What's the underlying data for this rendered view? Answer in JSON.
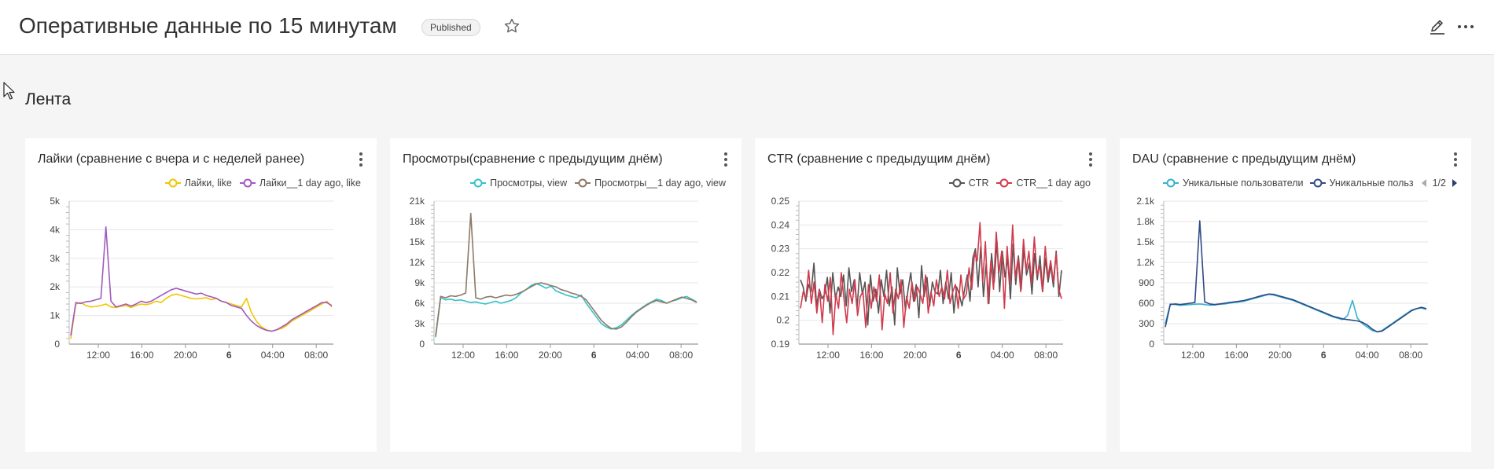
{
  "header": {
    "title": "Оперативные данные по 15 минутам",
    "badge": "Published"
  },
  "section": {
    "title": "Лента"
  },
  "icons": {
    "star": "star-icon",
    "edit": "edit-icon",
    "more": "more-icon",
    "kebab": "kebab-icon"
  },
  "cards": [
    {
      "title": "Лайки (сравнение с вчера и с неделей ранее)",
      "legend": [
        "Лайки, like",
        "Лайки__1 day ago, like"
      ]
    },
    {
      "title": "Просмотры(сравнение с предыдущим днём)",
      "legend": [
        "Просмотры, view",
        "Просмотры__1 day ago, view"
      ]
    },
    {
      "title": "CTR (сравнение с предыдущим днём)",
      "legend": [
        "CTR",
        "CTR__1 day ago"
      ]
    },
    {
      "title": "DAU (сравнение с предыдущим днём)",
      "legend": [
        "Уникальные пользователи",
        "Уникальные польз"
      ],
      "pager": "1/2"
    }
  ],
  "chart_data": [
    {
      "type": "line",
      "x_ticks": [
        "12:00",
        "16:00",
        "20:00",
        "6",
        "04:00",
        "08:00"
      ],
      "y_ticks": [
        "0",
        "1k",
        "2k",
        "3k",
        "4k",
        "5k"
      ],
      "ylim": [
        0,
        5000
      ],
      "series": [
        {
          "name": "Лайки, like",
          "color": "#f2c500",
          "values": [
            180,
            1400,
            1450,
            1350,
            1300,
            1320,
            1350,
            1400,
            1300,
            1280,
            1320,
            1350,
            1280,
            1350,
            1400,
            1380,
            1420,
            1500,
            1450,
            1600,
            1700,
            1750,
            1700,
            1650,
            1600,
            1580,
            1600,
            1620,
            1550,
            1600,
            1500,
            1450,
            1400,
            1350,
            1300,
            1600,
            1100,
            800,
            600,
            500,
            450,
            500,
            550,
            650,
            800,
            900,
            1000,
            1100,
            1200,
            1300,
            1400,
            1500,
            1300
          ]
        },
        {
          "name": "Лайки__1 day ago, like",
          "color": "#a05bc0",
          "values": [
            300,
            1450,
            1420,
            1480,
            1500,
            1550,
            1600,
            4100,
            1500,
            1300,
            1350,
            1400,
            1330,
            1400,
            1500,
            1450,
            1500,
            1600,
            1700,
            1800,
            1900,
            1950,
            1900,
            1850,
            1800,
            1750,
            1780,
            1700,
            1650,
            1600,
            1500,
            1450,
            1350,
            1300,
            1250,
            1000,
            800,
            650,
            550,
            480,
            450,
            500,
            600,
            700,
            850,
            950,
            1050,
            1150,
            1250,
            1350,
            1450,
            1450,
            1350
          ]
        }
      ]
    },
    {
      "type": "line",
      "x_ticks": [
        "12:00",
        "16:00",
        "20:00",
        "6",
        "04:00",
        "08:00"
      ],
      "y_ticks": [
        "0",
        "3k",
        "6k",
        "9k",
        "12k",
        "15k",
        "18k",
        "21k"
      ],
      "ylim": [
        0,
        21000
      ],
      "series": [
        {
          "name": "Просмотры, view",
          "color": "#34c1c9",
          "values": [
            1000,
            6800,
            6500,
            6600,
            6400,
            6500,
            6300,
            6100,
            6200,
            6000,
            5900,
            6100,
            6300,
            6000,
            6200,
            6400,
            6800,
            7500,
            8000,
            8600,
            8900,
            8600,
            8200,
            8500,
            7800,
            7500,
            7200,
            7000,
            6800,
            7200,
            6000,
            5000,
            4000,
            3000,
            2500,
            2200,
            2400,
            2800,
            3500,
            4200,
            4800,
            5300,
            5800,
            6200,
            6600,
            6400,
            6000,
            6300,
            6500,
            6800,
            7000,
            6600,
            6200
          ]
        },
        {
          "name": "Просмотры__1 day ago, view",
          "color": "#8c7967",
          "values": [
            1200,
            7000,
            6800,
            7100,
            7000,
            7200,
            7500,
            19200,
            6800,
            6600,
            6900,
            7000,
            6800,
            7000,
            7200,
            7100,
            7300,
            7600,
            8000,
            8400,
            8800,
            9000,
            8800,
            8600,
            8400,
            8000,
            7800,
            7500,
            7300,
            7000,
            6500,
            5500,
            4500,
            3500,
            2800,
            2300,
            2200,
            2500,
            3200,
            4000,
            4700,
            5200,
            5700,
            6100,
            6400,
            6200,
            6000,
            6300,
            6600,
            6900,
            6700,
            6500,
            6100
          ]
        }
      ]
    },
    {
      "type": "line",
      "x_ticks": [
        "12:00",
        "16:00",
        "20:00",
        "6",
        "04:00",
        "08:00"
      ],
      "y_ticks": [
        "0.19",
        "0.2",
        "0.21",
        "0.22",
        "0.23",
        "0.24",
        "0.25"
      ],
      "ylim": [
        0.19,
        0.25
      ],
      "series": [
        {
          "name": "CTR",
          "color": "#555555",
          "values": [
            0.217,
            0.214,
            0.208,
            0.215,
            0.212,
            0.224,
            0.206,
            0.213,
            0.209,
            0.211,
            0.218,
            0.203,
            0.22,
            0.209,
            0.214,
            0.21,
            0.219,
            0.206,
            0.222,
            0.212,
            0.217,
            0.205,
            0.22,
            0.211,
            0.216,
            0.198,
            0.219,
            0.208,
            0.213,
            0.203,
            0.217,
            0.21,
            0.221,
            0.206,
            0.214,
            0.198,
            0.222,
            0.211,
            0.217,
            0.204,
            0.213,
            0.22,
            0.208,
            0.215,
            0.201,
            0.223,
            0.21,
            0.218,
            0.206,
            0.216,
            0.212,
            0.211,
            0.221,
            0.207,
            0.216,
            0.209,
            0.22,
            0.203,
            0.214,
            0.211,
            0.206,
            0.213,
            0.219,
            0.208,
            0.226,
            0.23,
            0.214,
            0.231,
            0.21,
            0.224,
            0.207,
            0.228,
            0.216,
            0.233,
            0.212,
            0.229,
            0.218,
            0.226,
            0.209,
            0.232,
            0.215,
            0.227,
            0.213,
            0.23,
            0.219,
            0.224,
            0.211,
            0.228,
            0.217,
            0.227,
            0.212,
            0.226,
            0.216,
            0.223,
            0.214,
            0.229,
            0.21,
            0.221
          ]
        },
        {
          "name": "CTR__1 day ago",
          "color": "#d13a4c",
          "values": [
            0.205,
            0.212,
            0.209,
            0.221,
            0.207,
            0.216,
            0.203,
            0.213,
            0.199,
            0.215,
            0.208,
            0.218,
            0.194,
            0.211,
            0.205,
            0.22,
            0.209,
            0.199,
            0.213,
            0.207,
            0.217,
            0.202,
            0.21,
            0.212,
            0.197,
            0.215,
            0.205,
            0.214,
            0.208,
            0.219,
            0.196,
            0.211,
            0.207,
            0.22,
            0.203,
            0.213,
            0.209,
            0.217,
            0.197,
            0.21,
            0.205,
            0.216,
            0.208,
            0.214,
            0.211,
            0.207,
            0.219,
            0.203,
            0.212,
            0.206,
            0.217,
            0.21,
            0.214,
            0.209,
            0.221,
            0.207,
            0.212,
            0.215,
            0.205,
            0.219,
            0.209,
            0.211,
            0.222,
            0.213,
            0.228,
            0.225,
            0.241,
            0.216,
            0.233,
            0.207,
            0.225,
            0.213,
            0.237,
            0.22,
            0.229,
            0.205,
            0.231,
            0.215,
            0.24,
            0.218,
            0.226,
            0.212,
            0.234,
            0.221,
            0.229,
            0.215,
            0.235,
            0.219,
            0.223,
            0.212,
            0.231,
            0.218,
            0.225,
            0.216,
            0.228,
            0.213,
            0.209
          ]
        }
      ]
    },
    {
      "type": "line",
      "x_ticks": [
        "12:00",
        "16:00",
        "20:00",
        "6",
        "04:00",
        "08:00"
      ],
      "y_ticks": [
        "0",
        "300",
        "600",
        "900",
        "1.2k",
        "1.5k",
        "1.8k",
        "2.1k"
      ],
      "ylim": [
        0,
        2100
      ],
      "series": [
        {
          "name": "Уникальные пользователи",
          "color": "#34b3cf",
          "values": [
            300,
            590,
            580,
            570,
            575,
            580,
            585,
            590,
            580,
            570,
            575,
            585,
            590,
            600,
            610,
            620,
            630,
            650,
            670,
            690,
            710,
            730,
            720,
            700,
            680,
            660,
            640,
            610,
            580,
            550,
            520,
            490,
            460,
            430,
            400,
            380,
            360,
            420,
            640,
            380,
            300,
            250,
            200,
            180,
            200,
            250,
            300,
            350,
            400,
            450,
            500,
            520,
            530,
            510
          ]
        },
        {
          "name": "Уникальные польз",
          "color": "#2e4a86",
          "values": [
            250,
            580,
            590,
            580,
            590,
            600,
            610,
            1810,
            620,
            590,
            580,
            590,
            600,
            610,
            620,
            630,
            640,
            660,
            680,
            700,
            720,
            735,
            730,
            710,
            690,
            670,
            650,
            620,
            590,
            560,
            530,
            500,
            470,
            440,
            410,
            390,
            370,
            360,
            350,
            340,
            320,
            280,
            220,
            180,
            190,
            240,
            290,
            340,
            390,
            440,
            490,
            520,
            540,
            520
          ]
        }
      ]
    }
  ]
}
